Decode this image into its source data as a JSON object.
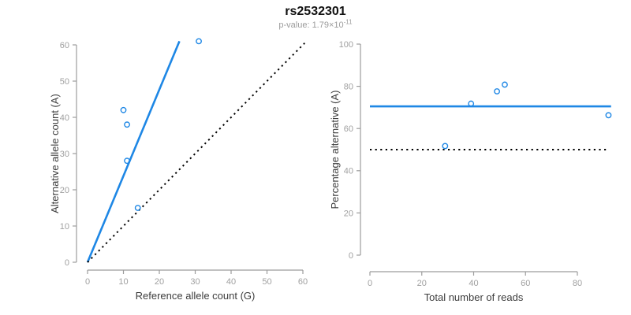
{
  "figure": {
    "title": "rs2532301",
    "p_value_prefix": "p-value: 1.79×10",
    "p_value_exponent": "-11"
  },
  "colors": {
    "accent_blue": "#1E87E5",
    "axis_gray": "#9c9c9c",
    "tick_label_gray": "#a0a0a0",
    "axis_label_dark": "#3d3d3d",
    "dotted_black": "#000000"
  },
  "chart_data": [
    {
      "type": "scatter",
      "name": "allele-count-scatter",
      "xlabel": "Reference allele count (G)",
      "ylabel": "Alternative allele count (A)",
      "xlim": [
        0,
        62
      ],
      "ylim": [
        0,
        62
      ],
      "xticks": [
        0,
        10,
        20,
        30,
        40,
        50,
        60
      ],
      "yticks": [
        0,
        10,
        20,
        30,
        40,
        50,
        60
      ],
      "grid": false,
      "points": [
        [
          10,
          42
        ],
        [
          11,
          38
        ],
        [
          11,
          28
        ],
        [
          14,
          15
        ],
        [
          31,
          61
        ]
      ],
      "lines": [
        {
          "name": "fitted-ratio-line",
          "style": "solid",
          "color_key": "accent_blue",
          "x1": 0,
          "y1": 0,
          "x2": 25.6,
          "y2": 61
        },
        {
          "name": "identity-line",
          "style": "dotted",
          "color_key": "dotted_black",
          "x1": 0,
          "y1": 0,
          "x2": 60.5,
          "y2": 60.5
        }
      ]
    },
    {
      "type": "scatter",
      "name": "percentage-scatter",
      "xlabel": "Total number of reads",
      "ylabel": "Percentage alternative (A)",
      "xlim": [
        0,
        93
      ],
      "ylim": [
        0,
        100
      ],
      "xticks": [
        0,
        20,
        40,
        60,
        80
      ],
      "yticks": [
        0,
        20,
        40,
        60,
        80,
        100
      ],
      "grid": false,
      "points": [
        [
          29,
          51.7
        ],
        [
          39,
          71.8
        ],
        [
          49,
          77.6
        ],
        [
          52,
          80.8
        ],
        [
          92,
          66.3
        ]
      ],
      "lines": [
        {
          "name": "mean-percentage-line",
          "style": "solid",
          "color_key": "accent_blue",
          "x1": 0,
          "y1": 70.5,
          "x2": 93,
          "y2": 70.5
        },
        {
          "name": "null-50pct-line",
          "style": "dotted",
          "color_key": "dotted_black",
          "x1": 0,
          "y1": 50,
          "x2": 92,
          "y2": 50
        }
      ]
    }
  ]
}
